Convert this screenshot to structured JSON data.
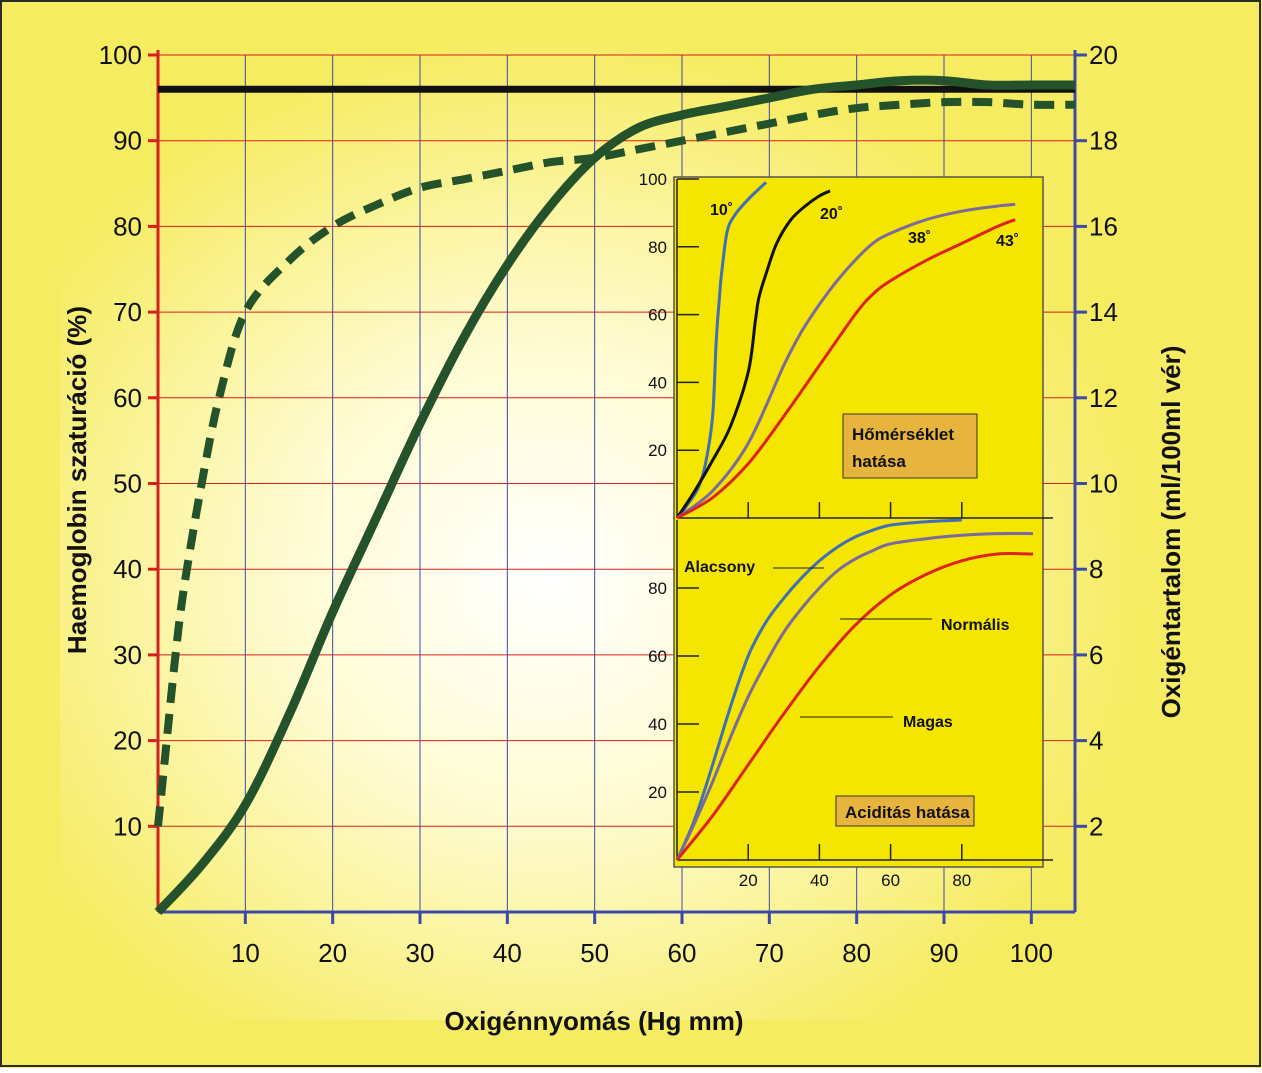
{
  "colors": {
    "background_yellow": "#f6ec62",
    "grid_red": "#d81e1e",
    "grid_blue": "#3b4aa8",
    "curve_green": "#24522a",
    "reference_black": "#111111",
    "inset_bg": "#f5e600",
    "label_box": "#e7b53e",
    "series_blue": "#3f6fb6",
    "series_black": "#111111",
    "series_purple": "#7a6a9e",
    "series_red": "#dd2424"
  },
  "chart_data": [
    {
      "type": "line",
      "xlabel": "Oxigénnyomás (Hg mm)",
      "ylabel_left": "Haemoglobin szaturáció (%)",
      "ylabel_right": "Oxigéntartalom (ml/100ml vér)",
      "xlim": [
        0,
        105
      ],
      "ylim_left": [
        0,
        100
      ],
      "ylim_right": [
        0,
        20
      ],
      "x_ticks": [
        "10",
        "20",
        "30",
        "40",
        "50",
        "60",
        "70",
        "80",
        "90",
        "100"
      ],
      "x_tick_values": [
        10,
        20,
        30,
        40,
        50,
        60,
        70,
        80,
        90,
        100
      ],
      "y_ticks_left": [
        "10",
        "20",
        "30",
        "40",
        "50",
        "60",
        "70",
        "80",
        "90",
        "100"
      ],
      "y_tick_values_left": [
        10,
        20,
        30,
        40,
        50,
        60,
        70,
        80,
        90,
        100
      ],
      "y_ticks_right": [
        "2",
        "4",
        "6",
        "8",
        "10",
        "12",
        "14",
        "16",
        "18",
        "20"
      ],
      "y_tick_values_right": [
        2,
        4,
        6,
        8,
        10,
        12,
        14,
        16,
        18,
        20
      ],
      "grid": true,
      "series": [
        {
          "style": "solid-thick",
          "color": "#24522a",
          "x": [
            0,
            5,
            10,
            15,
            20,
            25,
            30,
            35,
            40,
            45,
            50,
            55,
            60,
            65,
            70,
            75,
            80,
            85,
            90,
            95,
            100,
            105
          ],
          "y": [
            0,
            5.5,
            12.5,
            23,
            35,
            46,
            57,
            67,
            75.5,
            82.5,
            88,
            91.5,
            93,
            94,
            95,
            96,
            96.5,
            97,
            97,
            96.5,
            96.5,
            96.5
          ]
        },
        {
          "style": "dashed-thick",
          "color": "#24522a",
          "x": [
            0,
            1,
            2,
            3,
            5,
            7,
            10,
            15,
            20,
            25,
            30,
            35,
            40,
            45,
            50,
            55,
            60,
            65,
            70,
            75,
            80,
            85,
            90,
            95,
            100,
            105
          ],
          "y": [
            10,
            20,
            30,
            38,
            50,
            60,
            70,
            76,
            80,
            82.5,
            84.5,
            85.5,
            86.5,
            87.5,
            88,
            89,
            90,
            91,
            92,
            93,
            93.8,
            94.2,
            94.5,
            94.5,
            94.2,
            94.2
          ]
        },
        {
          "style": "solid-thick",
          "color": "#111111",
          "x": [
            0,
            105
          ],
          "y": [
            96,
            96
          ]
        }
      ]
    },
    {
      "type": "line",
      "xlim": [
        0,
        100
      ],
      "ylim": [
        0,
        100
      ],
      "x_ticks": [
        "20",
        "40",
        "60",
        "80"
      ],
      "x_tick_values": [
        20,
        40,
        60,
        80
      ],
      "y_ticks": [
        "20",
        "40",
        "60",
        "80",
        "100"
      ],
      "y_tick_values": [
        20,
        40,
        60,
        80,
        100
      ],
      "annotation": [
        "Hőmérséklet",
        "hatása"
      ],
      "series": [
        {
          "name": "10˚",
          "color": "#3f6fb6",
          "x": [
            0,
            3,
            6,
            8,
            10,
            11,
            12,
            12.5,
            14,
            16,
            20,
            25
          ],
          "y": [
            0,
            4,
            9,
            16,
            30,
            52,
            66,
            72,
            84,
            89,
            94,
            99
          ]
        },
        {
          "name": "20˚",
          "color": "#111111",
          "x": [
            0,
            5,
            10,
            15,
            20,
            22,
            23,
            25,
            28,
            32,
            36,
            40,
            43
          ],
          "y": [
            0,
            8,
            17,
            27,
            43,
            58,
            65,
            72,
            81,
            88,
            92,
            95,
            96.5
          ]
        },
        {
          "name": "38˚",
          "color": "#7a6a9e",
          "x": [
            0,
            10,
            20,
            30,
            35,
            40,
            45,
            50,
            55,
            60,
            70,
            80,
            90,
            95
          ],
          "y": [
            0,
            8,
            22,
            45,
            55,
            63,
            70,
            76,
            81,
            84,
            88,
            90.5,
            92,
            92.5
          ]
        },
        {
          "name": "43˚",
          "color": "#dd2424",
          "x": [
            0,
            10,
            20,
            30,
            40,
            50,
            55,
            60,
            70,
            80,
            90,
            95
          ],
          "y": [
            0,
            6,
            16,
            30,
            45,
            60,
            66,
            70,
            76,
            81,
            86,
            88
          ]
        }
      ]
    },
    {
      "type": "line",
      "xlim": [
        0,
        100
      ],
      "ylim": [
        0,
        100
      ],
      "x_ticks": [
        "20",
        "40",
        "60",
        "80"
      ],
      "x_tick_values": [
        20,
        40,
        60,
        80
      ],
      "y_ticks": [
        "20",
        "40",
        "60",
        "80"
      ],
      "y_tick_values": [
        20,
        40,
        60,
        80
      ],
      "annotation": [
        "Aciditás hatása"
      ],
      "series": [
        {
          "name": "Alacsony",
          "color": "#3f6fb6",
          "x": [
            0,
            5,
            10,
            15,
            20,
            25,
            30,
            35,
            40,
            45,
            50,
            55,
            60,
            70,
            80
          ],
          "y": [
            0,
            12,
            28,
            45,
            60,
            70,
            77,
            83,
            88,
            92,
            95,
            97,
            98.5,
            99.5,
            100
          ]
        },
        {
          "name": "Normális",
          "color": "#7a6a9e",
          "x": [
            0,
            5,
            10,
            15,
            20,
            25,
            30,
            35,
            40,
            45,
            50,
            55,
            60,
            70,
            80,
            90,
            100
          ],
          "y": [
            0,
            11,
            23,
            36,
            48,
            58,
            67,
            74,
            80,
            85,
            88.5,
            91,
            93,
            94.5,
            95.5,
            96,
            96
          ]
        },
        {
          "name": "Magas",
          "color": "#dd2424",
          "x": [
            0,
            10,
            20,
            30,
            40,
            50,
            60,
            70,
            80,
            90,
            100
          ],
          "y": [
            0,
            13,
            28,
            43,
            57,
            69,
            78,
            84,
            88,
            90,
            90
          ]
        }
      ]
    }
  ]
}
